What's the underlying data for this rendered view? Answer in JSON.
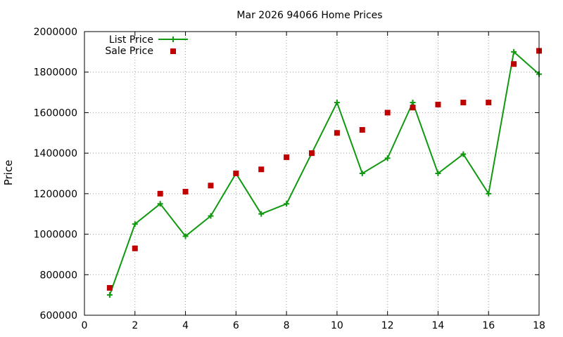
{
  "chart_data": {
    "type": "line",
    "title": "Mar 2026 94066 Home Prices",
    "xlabel": "",
    "ylabel": "Price",
    "xlim": [
      0,
      18
    ],
    "ylim": [
      600000,
      2000000
    ],
    "x_ticks": [
      0,
      2,
      4,
      6,
      8,
      10,
      12,
      14,
      16,
      18
    ],
    "y_ticks": [
      600000,
      800000,
      1000000,
      1200000,
      1400000,
      1600000,
      1800000,
      2000000
    ],
    "grid": true,
    "legend_position": "top-left",
    "series": [
      {
        "name": "List Price",
        "style": "lines+points",
        "marker": "plus",
        "color": "#109910",
        "x": [
          1,
          2,
          3,
          4,
          5,
          6,
          7,
          8,
          9,
          10,
          11,
          12,
          13,
          14,
          15,
          16,
          17,
          18
        ],
        "values": [
          700000,
          1050000,
          1150000,
          990000,
          1090000,
          1300000,
          1100000,
          1150000,
          1400000,
          1650000,
          1300000,
          1375000,
          1650000,
          1300000,
          1395000,
          1200000,
          1900000,
          1790000
        ]
      },
      {
        "name": "Sale Price",
        "style": "points",
        "marker": "square",
        "color": "#c00000",
        "x": [
          1,
          2,
          3,
          4,
          5,
          6,
          7,
          8,
          9,
          10,
          11,
          12,
          13,
          14,
          15,
          16,
          17,
          18
        ],
        "values": [
          735000,
          930000,
          1200000,
          1210000,
          1240000,
          1300000,
          1320000,
          1380000,
          1400000,
          1500000,
          1515000,
          1600000,
          1625000,
          1640000,
          1650000,
          1650000,
          1840000,
          1905000
        ]
      }
    ]
  }
}
